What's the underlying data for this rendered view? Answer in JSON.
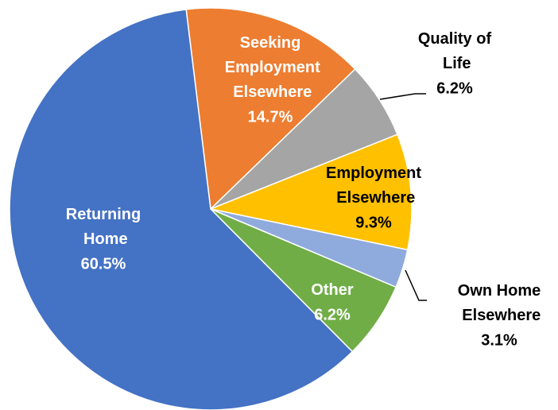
{
  "chart_data": {
    "type": "pie",
    "categories": [
      "Seeking Employment Elsewhere",
      "Quality of Life",
      "Employment Elsewhere",
      "Own Home Elsewhere",
      "Other",
      "Returning Home"
    ],
    "values": [
      14.7,
      6.2,
      9.3,
      3.1,
      6.2,
      60.5
    ],
    "value_labels": [
      "14.7%",
      "6.2%",
      "9.3%",
      "3.1%",
      "6.2%",
      "60.5%"
    ],
    "colors": [
      "#ed7d31",
      "#a5a5a5",
      "#ffc000",
      "#8faadc",
      "#70ad47",
      "#4472c4"
    ]
  }
}
